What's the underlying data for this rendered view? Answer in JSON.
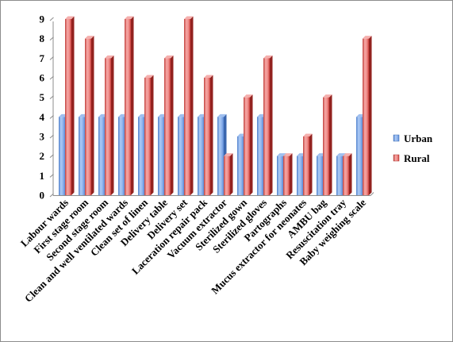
{
  "chart_data": {
    "type": "bar",
    "style": "3d-clustered-column",
    "title": "",
    "xlabel": "",
    "ylabel": "",
    "categories": [
      "Labour wards",
      "First stage room",
      "Second stage room",
      "Clean and well ventilated wards",
      "Clean set of linen",
      "Delivery table",
      "Delivery set",
      "Laceration repair pack",
      "Vacuum extractor",
      "Sterilized gown",
      "Sterilized gloves",
      "Partographs",
      "Mucus extractor for neonates",
      "AMBU bag",
      "Resuscitation tray",
      "Baby weighing scale"
    ],
    "series": [
      {
        "name": "Urban",
        "color": "#4F81BD",
        "values": [
          4,
          4,
          4,
          4,
          4,
          4,
          4,
          4,
          4,
          3,
          4,
          2,
          2,
          2,
          2,
          4
        ]
      },
      {
        "name": "Rural",
        "color": "#C0504D",
        "values": [
          9,
          8,
          7,
          9,
          6,
          7,
          9,
          6,
          2,
          5,
          7,
          2,
          3,
          5,
          2,
          8
        ]
      }
    ],
    "ylim": [
      0,
      9
    ],
    "yticks": [
      "0",
      "1",
      "2",
      "3",
      "4",
      "5",
      "6",
      "7",
      "8",
      "9"
    ],
    "grid": false,
    "legend": "right"
  }
}
